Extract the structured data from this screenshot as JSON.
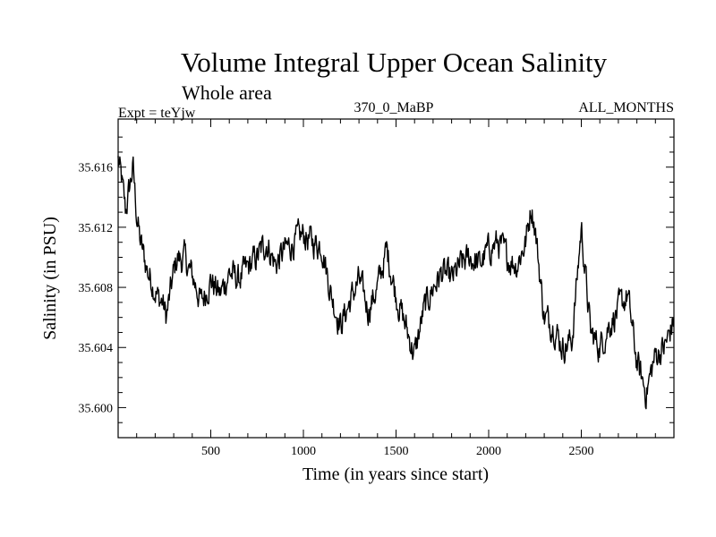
{
  "chart_data": {
    "type": "line",
    "title": "Volume Integral Upper Ocean Salinity",
    "subtitle": "Whole area",
    "expt_label": "Expt = teYjw",
    "run_label": "370_0_MaBP",
    "period_label": "ALL_MONTHS",
    "xlabel": "Time (in years since start)",
    "ylabel": "Salinity (in PSU)",
    "xlim": [
      0,
      3000
    ],
    "ylim": [
      35.598,
      35.6192
    ],
    "x_ticks": [
      500,
      1000,
      1500,
      2000,
      2500
    ],
    "x_tick_labels": [
      "500",
      "1000",
      "1500",
      "2000",
      "2500"
    ],
    "y_ticks": [
      35.6,
      35.604,
      35.608,
      35.612,
      35.616
    ],
    "y_tick_labels": [
      "35.600",
      "35.604",
      "35.608",
      "35.612",
      "35.616"
    ],
    "grid": false,
    "series": [
      {
        "name": "salinity",
        "x": [
          0,
          20,
          40,
          60,
          80,
          100,
          120,
          140,
          160,
          180,
          200,
          220,
          240,
          260,
          280,
          300,
          320,
          340,
          360,
          380,
          400,
          450,
          500,
          550,
          600,
          650,
          700,
          750,
          800,
          850,
          900,
          950,
          1000,
          1050,
          1100,
          1150,
          1200,
          1250,
          1300,
          1350,
          1400,
          1450,
          1500,
          1550,
          1600,
          1650,
          1700,
          1750,
          1800,
          1850,
          1900,
          1950,
          2000,
          2050,
          2100,
          2150,
          2200,
          2230,
          2250,
          2300,
          2350,
          2400,
          2450,
          2500,
          2550,
          2600,
          2650,
          2700,
          2750,
          2800,
          2850,
          2900,
          2950,
          3000
        ],
        "values": [
          35.6165,
          35.615,
          35.613,
          35.6145,
          35.616,
          35.6128,
          35.611,
          35.61,
          35.609,
          35.6085,
          35.6078,
          35.6072,
          35.607,
          35.606,
          35.6075,
          35.609,
          35.61,
          35.6098,
          35.61,
          35.6092,
          35.6088,
          35.607,
          35.6085,
          35.6075,
          35.609,
          35.6085,
          35.6093,
          35.61,
          35.611,
          35.6095,
          35.6105,
          35.611,
          35.6115,
          35.611,
          35.6108,
          35.6075,
          35.6055,
          35.607,
          35.6085,
          35.6065,
          35.608,
          35.6105,
          35.6075,
          35.6055,
          35.6035,
          35.6065,
          35.608,
          35.609,
          35.6085,
          35.6095,
          35.61,
          35.6095,
          35.6105,
          35.611,
          35.61,
          35.6095,
          35.611,
          35.6135,
          35.612,
          35.606,
          35.6055,
          35.604,
          35.6045,
          35.612,
          35.605,
          35.604,
          35.6055,
          35.6065,
          35.6075,
          35.603,
          35.601,
          35.6035,
          35.604,
          35.6058
        ]
      }
    ]
  }
}
